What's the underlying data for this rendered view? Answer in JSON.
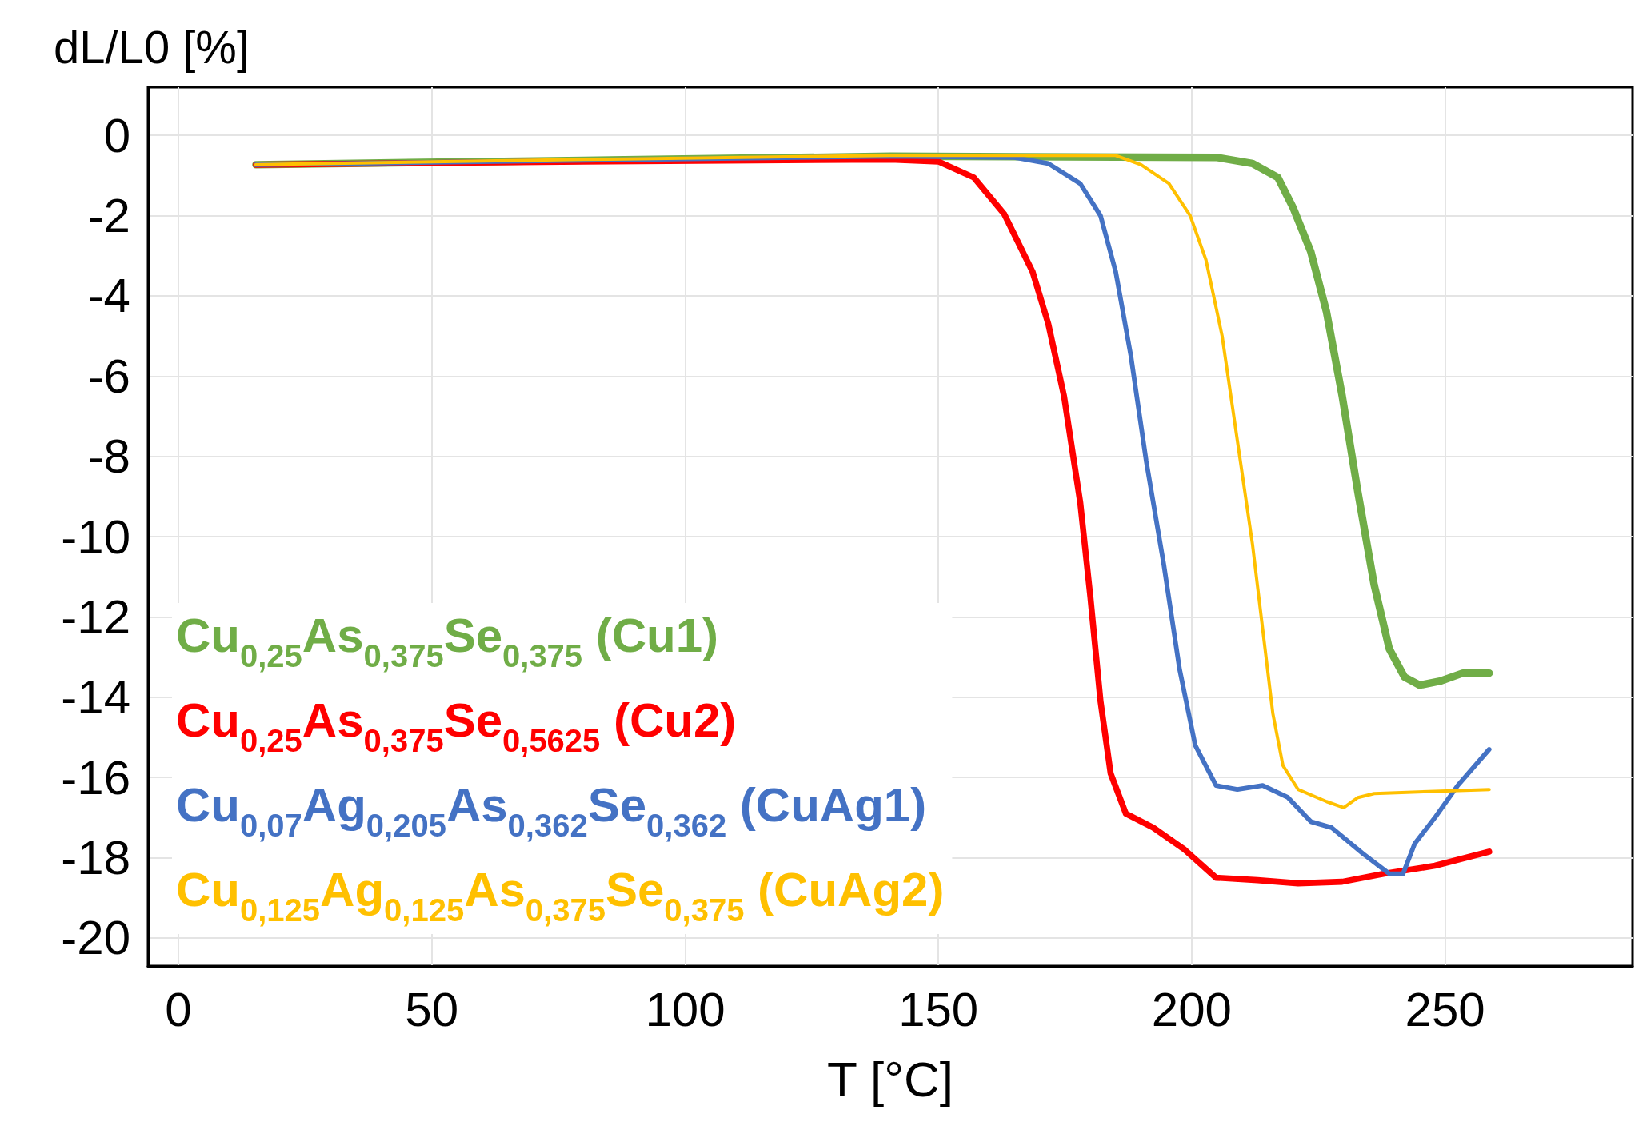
{
  "chart_data": {
    "type": "line",
    "xlabel": "T [°C]",
    "ylabel": "dL/L0 [%]",
    "xlim": [
      -6,
      287
    ],
    "xticks": [
      0,
      50,
      100,
      150,
      200,
      250
    ],
    "ylim": [
      -20.7,
      1.2
    ],
    "yticks": [
      -20,
      -18,
      -16,
      -14,
      -12,
      -10,
      -8,
      -6,
      -4,
      -2,
      0
    ],
    "grid": true,
    "legend": "bottom left",
    "marker": "none",
    "line_style": "solid",
    "series": [
      {
        "name": "Cu$_{0,25}$As$_{0,375}$Se$_{0,375}$ (Cu1)",
        "color": "#70ad47",
        "x": [
          15.3,
          80,
          140.6,
          205,
          212,
          217,
          220,
          223.5,
          226.6,
          229.7,
          232.8,
          236,
          239,
          242,
          245,
          249,
          253.5,
          258.7
        ],
        "values": [
          -0.73,
          -0.62,
          -0.52,
          -0.55,
          -0.7,
          -1.05,
          -1.8,
          -2.9,
          -4.4,
          -6.5,
          -8.9,
          -11.2,
          -12.8,
          -13.5,
          -13.7,
          -13.6,
          -13.4,
          -13.4
        ]
      },
      {
        "name": "Cu$_{0,25}$As$_{0,375}$Se$_{0,5625}$ (Cu2)",
        "color": "#ff0000",
        "x": [
          15.3,
          80,
          140.6,
          150,
          157,
          163,
          168.6,
          171.7,
          174.8,
          178,
          180,
          182,
          184,
          187,
          192.4,
          198.6,
          204.8,
          213,
          221,
          229.7,
          238,
          248,
          258.7
        ],
        "values": [
          -0.73,
          -0.65,
          -0.6,
          -0.65,
          -1.05,
          -1.96,
          -3.4,
          -4.7,
          -6.5,
          -9.15,
          -11.5,
          -14.1,
          -15.9,
          -16.9,
          -17.25,
          -17.8,
          -18.5,
          -18.56,
          -18.64,
          -18.6,
          -18.4,
          -18.2,
          -17.85
        ]
      },
      {
        "name": "Cu$_{0,07}$Ag$_{0,205}$As$_{0,362}$Se$_{0,362}$ (CuAg1)",
        "color": "#4472c4",
        "x": [
          15.3,
          80,
          140.6,
          165,
          171.7,
          178,
          182,
          185,
          188,
          191,
          194.5,
          197.6,
          200.7,
          204.8,
          209,
          214,
          219,
          223.5,
          227.6,
          233.8,
          239,
          241.7,
          244,
          248,
          252.5,
          258.7
        ],
        "values": [
          -0.73,
          -0.62,
          -0.52,
          -0.55,
          -0.7,
          -1.2,
          -2.0,
          -3.4,
          -5.5,
          -8.1,
          -10.7,
          -13.3,
          -15.2,
          -16.2,
          -16.3,
          -16.2,
          -16.5,
          -17.1,
          -17.25,
          -17.9,
          -18.4,
          -18.4,
          -17.65,
          -17.0,
          -16.2,
          -15.3
        ]
      },
      {
        "name": "Cu$_{0,125}$Ag$_{0,125}$As$_{0,375}$Se$_{0,375}$ (CuAg2)",
        "color": "#ffc000",
        "x": [
          15.3,
          80,
          140.6,
          185,
          190,
          195.5,
          199.7,
          202.8,
          206,
          209,
          212,
          214,
          216,
          218,
          221,
          226.6,
          230,
          232.8,
          236,
          258.7
        ],
        "values": [
          -0.73,
          -0.6,
          -0.5,
          -0.5,
          -0.73,
          -1.2,
          -2.0,
          -3.1,
          -5.0,
          -7.6,
          -10.2,
          -12.3,
          -14.4,
          -15.7,
          -16.3,
          -16.6,
          -16.75,
          -16.5,
          -16.4,
          -16.3
        ]
      }
    ]
  }
}
